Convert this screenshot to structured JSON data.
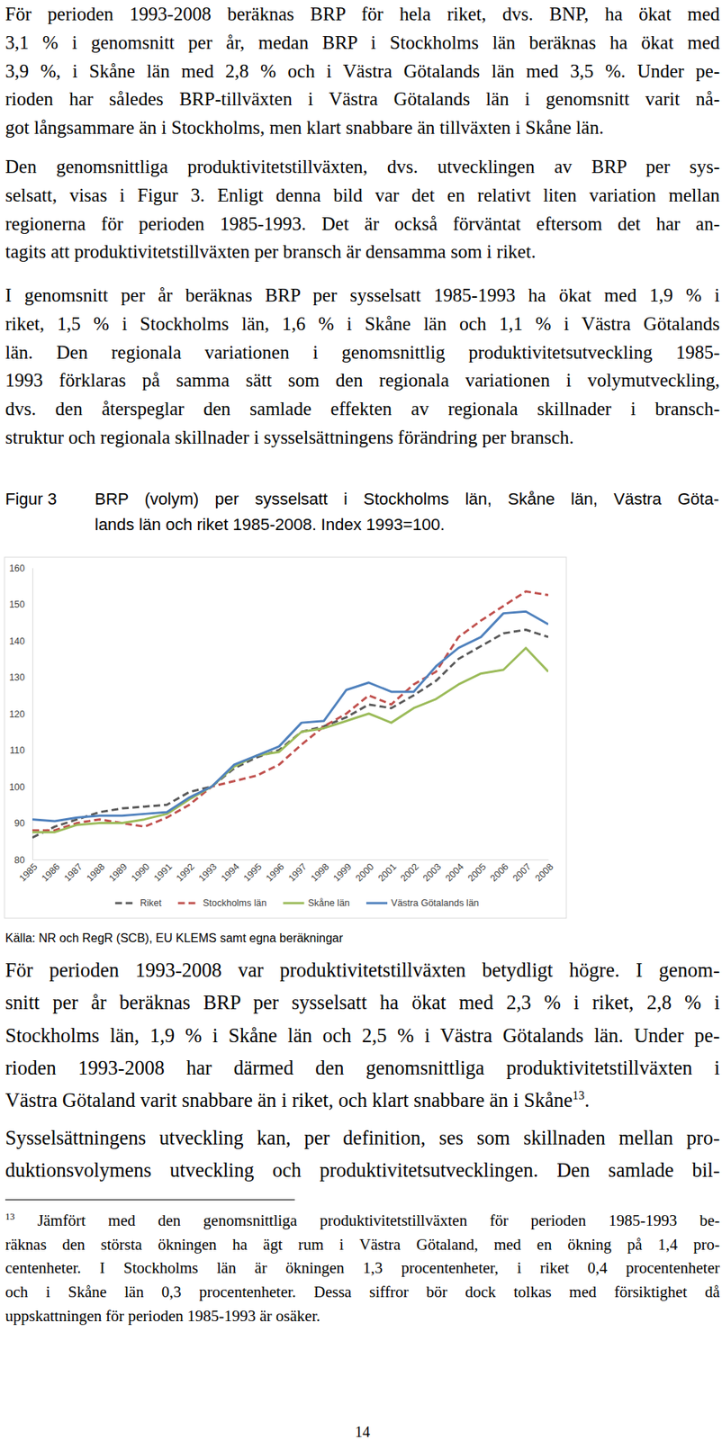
{
  "text_before": [
    [
      "För perioden 1993-2008 beräknas BRP för hela riket, dvs. BNP, ha ökat med",
      "3,1 % i genomsnitt per år, medan BRP i Stockholms län beräknas ha ökat med",
      "3,9 %, i Skåne län med 2,8 % och i Västra Götalands län med 3,5 %. Under pe-",
      "rioden har således BRP-tillväxten i Västra Götalands län i genomsnitt varit nå-",
      "got långsammare än i Stockholms, men klart snabbare än tillväxten i Skåne län."
    ],
    [
      "Den genomsnittliga produktivitetstillväxten, dvs. utvecklingen av BRP per sys-",
      "selsatt, visas i Figur 3. Enligt denna bild var det en relativt liten variation mellan",
      "regionerna för perioden 1985-1993. Det är också förväntat eftersom det har an-",
      "tagits att produktivitetstillväxten per bransch är densamma som i riket."
    ],
    [
      "I genomsnitt per år beräknas BRP per sysselsatt 1985-1993 ha ökat med 1,9 % i",
      "riket, 1,5 % i Stockholms län, 1,6 % i Skåne län och 1,1 % i Västra Götalands",
      "län. Den regionala variationen i genomsnittlig produktivitetsutveckling 1985-",
      "1993 förklaras på samma sätt som den regionala variationen i volymutveckling,",
      "dvs. den återspeglar den samlade effekten av regionala skillnader i bransch-",
      "struktur och regionala skillnader i sysselsättningens förändring per bransch."
    ]
  ],
  "figure": {
    "label": "Figur 3",
    "caption_lines": [
      "BRP (volym) per sysselsatt i Stockholms län, Skåne län, Västra Göta-",
      "lands län och riket 1985-2008. Index 1993=100."
    ],
    "source": "Källa: NR och RegR (SCB), EU KLEMS samt egna beräkningar"
  },
  "chart_data": {
    "type": "line",
    "categories": [
      "1985",
      "1986",
      "1987",
      "1988",
      "1989",
      "1990",
      "1991",
      "1992",
      "1993",
      "1994",
      "1995",
      "1996",
      "1997",
      "1998",
      "1999",
      "2000",
      "2001",
      "2002",
      "2003",
      "2004",
      "2005",
      "2006",
      "2007",
      "2008"
    ],
    "ylim": [
      80,
      160
    ],
    "yticks": [
      80,
      90,
      100,
      110,
      120,
      130,
      140,
      150,
      160
    ],
    "grid": false,
    "legend": "bottom",
    "series": [
      {
        "name": "Riket",
        "color": "#595959",
        "line_style": "dashed",
        "values": [
          86,
          89,
          91,
          93,
          94,
          94.5,
          95,
          98.5,
          100,
          105,
          108,
          110,
          115,
          116.5,
          119,
          122.5,
          121.5,
          125,
          129,
          135,
          138.5,
          142,
          143,
          141
        ]
      },
      {
        "name": "Stockholms län",
        "color": "#c0504d",
        "line_style": "dashed",
        "values": [
          88,
          88,
          90,
          91,
          90,
          89,
          91.5,
          95,
          100,
          101.5,
          103,
          106,
          111.5,
          116.5,
          120,
          125,
          122.5,
          128,
          131.5,
          141,
          145.5,
          149.5,
          153.5,
          152.5
        ]
      },
      {
        "name": "Skåne län",
        "color": "#9bbb59",
        "line_style": "solid",
        "values": [
          87.5,
          87.5,
          89.5,
          90,
          90,
          91,
          92.5,
          96.5,
          100,
          105.5,
          108.5,
          109.5,
          115,
          116,
          118,
          120,
          117.5,
          121.5,
          124,
          128,
          131,
          132,
          138,
          131.5
        ]
      },
      {
        "name": "Västra Götalands län",
        "color": "#4f81bd",
        "line_style": "solid",
        "values": [
          91,
          90.5,
          91.5,
          92,
          92,
          92.5,
          93,
          97,
          100,
          106,
          108.5,
          111,
          117.5,
          118,
          126.5,
          128.5,
          126,
          126,
          133,
          138,
          141,
          147.5,
          148,
          144.5
        ]
      }
    ]
  },
  "text_after": [
    [
      "För perioden 1993-2008 var produktivitetstillväxten betydligt högre. I genom-",
      "snitt per år beräknas BRP per sysselsatt ha ökat med 2,3 % i riket, 2,8 % i",
      "Stockholms län, 1,9 % i Skåne län och 2,5 % i Västra Götalands län. Under pe-",
      "rioden 1993-2008 har därmed den genomsnittliga produktivitetstillväxten i",
      {
        "text": "Västra Götaland varit snabbare än i riket, och klart snabbare än i Skåne",
        "superscript": "13",
        "tail": "."
      }
    ],
    [
      "Sysselsättningens utveckling kan, per definition, ses som skillnaden mellan pro-",
      "duktionsvolymens utveckling och produktivitetsutvecklingen. Den samlade bil-"
    ]
  ],
  "footnote": {
    "marker": "13",
    "lines": [
      "Jämfört med den genomsnittliga produktivitetstillväxten för perioden 1985-1993 be-",
      "räknas den största ökningen ha ägt rum i Västra Götaland, med en ökning på 1,4 pro-",
      "centenheter. I Stockholms län är ökningen 1,3 procentenheter, i riket 0,4 procentenheter",
      "och i Skåne län 0,3 procentenheter. Dessa siffror bör dock tolkas med försiktighet då",
      "uppskattningen för perioden 1985-1993 är osäker."
    ]
  },
  "page_number": "14"
}
